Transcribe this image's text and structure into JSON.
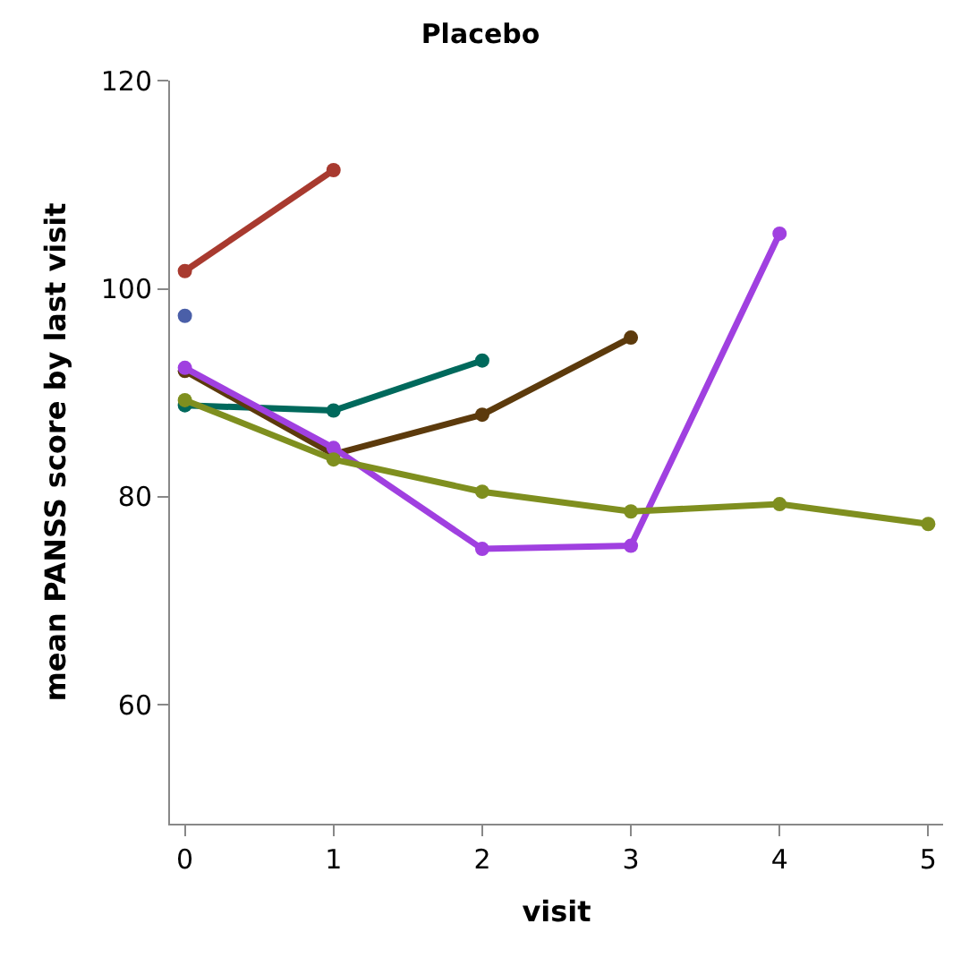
{
  "chart_data": {
    "type": "line",
    "title": "Placebo",
    "xlabel": "visit",
    "ylabel": "mean PANSS score by last visit",
    "marker": "circle",
    "line_style": "solid",
    "xlim": [
      -0.1,
      5.1
    ],
    "xticks": [
      0,
      1,
      2,
      3,
      4,
      5
    ],
    "ylim": [
      48.6,
      120
    ],
    "yticks": [
      60,
      80,
      100,
      120
    ],
    "series": [
      {
        "color": "#a83a2f",
        "x": [
          0,
          1
        ],
        "values": [
          101.7,
          111.4
        ]
      },
      {
        "color": "#4a5fa8",
        "x": [
          0
        ],
        "values": [
          97.4
        ]
      },
      {
        "color": "#00695c",
        "x": [
          0,
          1,
          2
        ],
        "values": [
          88.8,
          88.3,
          93.1
        ]
      },
      {
        "color": "#5c3a0c",
        "x": [
          0,
          1,
          2,
          3
        ],
        "values": [
          92.1,
          84.1,
          87.9,
          95.3
        ]
      },
      {
        "color": "#a040e0",
        "x": [
          0,
          1,
          2,
          3,
          4
        ],
        "values": [
          92.4,
          84.7,
          75.0,
          75.3,
          105.3
        ]
      },
      {
        "color": "#7f8f1f",
        "x": [
          0,
          1,
          2,
          3,
          4,
          5
        ],
        "values": [
          89.3,
          83.6,
          80.5,
          78.6,
          79.3,
          77.4
        ]
      }
    ]
  }
}
